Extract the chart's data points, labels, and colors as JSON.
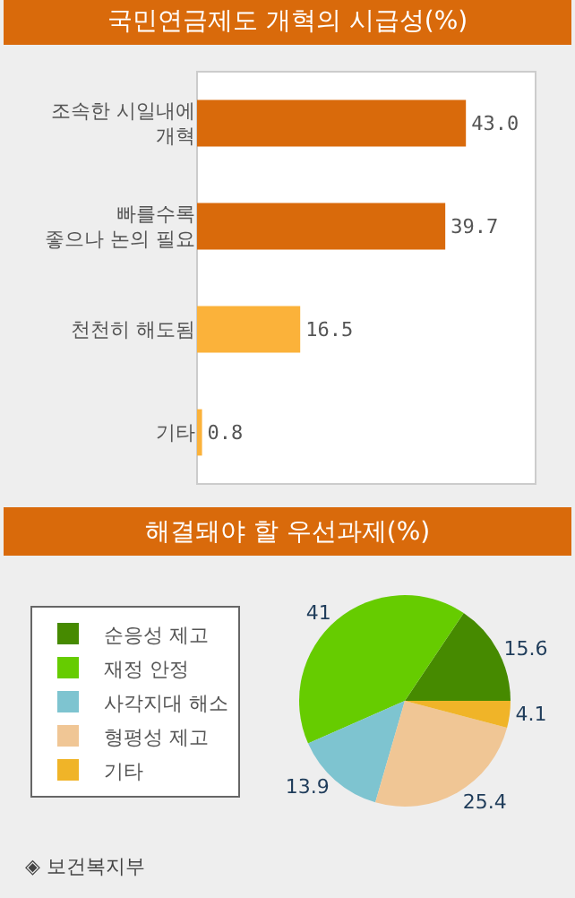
{
  "chart_data": [
    {
      "type": "bar",
      "orientation": "horizontal",
      "title": "국민연금제도 개혁의 시급성(%)",
      "categories": [
        "조속한 시일내에\n개혁",
        "빠를수록\n좋으나 논의 필요",
        "천천히 해도됨",
        "기타"
      ],
      "values": [
        43.0,
        39.7,
        16.5,
        0.8
      ],
      "colors": [
        "#d96a0b",
        "#d96a0b",
        "#fbb23a",
        "#fbb23a"
      ],
      "value_labels": [
        "43.0",
        "39.7",
        "16.5",
        "0.8"
      ],
      "tick_labels": "y",
      "legend": false
    },
    {
      "type": "pie",
      "title": "해결돼야 할 우선과제(%)",
      "categories": [
        "순응성 제고",
        "재정 안정",
        "사각지대 해소",
        "형평성 제고",
        "기타"
      ],
      "values": [
        15.6,
        41,
        13.9,
        25.4,
        4.1
      ],
      "colors": [
        "#468a00",
        "#66cc00",
        "#7ec4d0",
        "#f0c695",
        "#f0b428"
      ],
      "data_labels": true,
      "legend": "left",
      "annotations": [
        "◈ 보건복지부"
      ]
    }
  ]
}
